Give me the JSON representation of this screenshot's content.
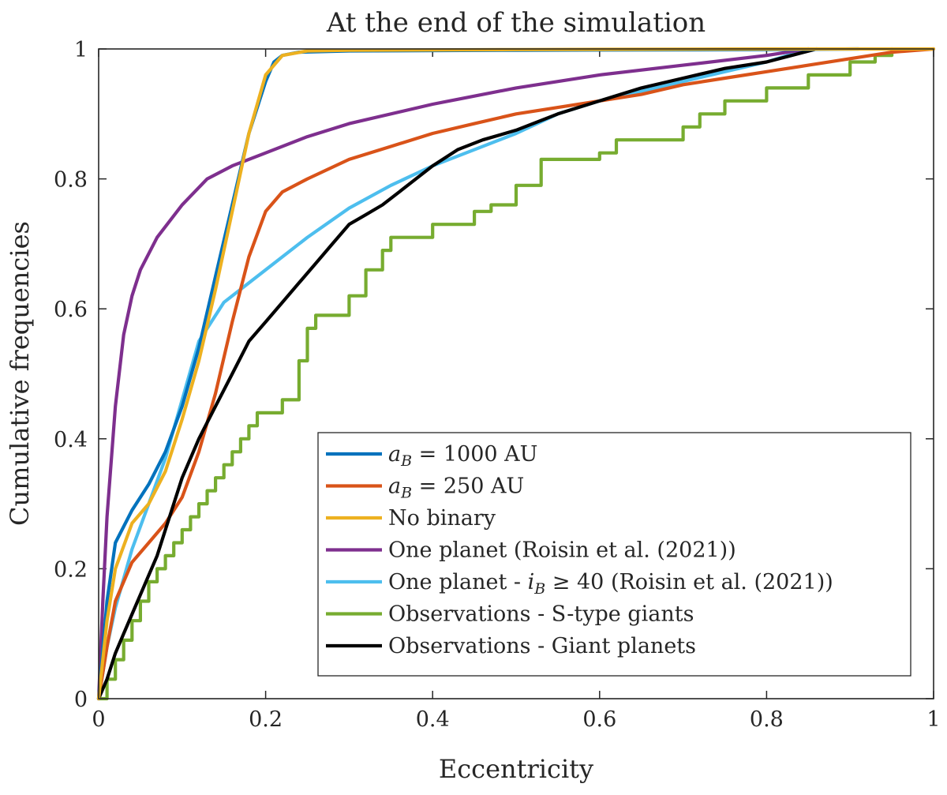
{
  "chart_data": {
    "type": "line",
    "title": "At the end of the simulation",
    "xlabel": "Eccentricity",
    "ylabel": "Cumulative frequencies",
    "xlim": [
      0,
      1
    ],
    "ylim": [
      0,
      1
    ],
    "xticks": [
      0,
      0.2,
      0.4,
      0.6,
      0.8,
      1
    ],
    "xtick_labels": [
      "0",
      "0.2",
      "0.4",
      "0.6",
      "0.8",
      "1"
    ],
    "yticks": [
      0,
      0.2,
      0.4,
      0.6,
      0.8,
      1
    ],
    "ytick_labels": [
      "0",
      "0.2",
      "0.4",
      "0.6",
      "0.8",
      "1"
    ],
    "legend_position": "bottom-right",
    "series": [
      {
        "name": "a_B = 1000 AU",
        "legend_parts": [
          "a",
          "B",
          " = 1000 AU"
        ],
        "color": "#0072BD",
        "step": false,
        "x": [
          0,
          0.01,
          0.02,
          0.04,
          0.06,
          0.08,
          0.1,
          0.12,
          0.14,
          0.16,
          0.18,
          0.2,
          0.21,
          0.22,
          0.24,
          0.3,
          0.5,
          0.8,
          0.91
        ],
        "y": [
          0,
          0.15,
          0.24,
          0.29,
          0.33,
          0.38,
          0.45,
          0.54,
          0.65,
          0.76,
          0.87,
          0.95,
          0.98,
          0.99,
          0.995,
          0.997,
          0.998,
          0.999,
          1.0
        ]
      },
      {
        "name": "a_B = 250 AU",
        "legend_parts": [
          "a",
          "B",
          " = 250 AU"
        ],
        "color": "#D95319",
        "step": false,
        "x": [
          0,
          0.01,
          0.02,
          0.04,
          0.06,
          0.08,
          0.1,
          0.12,
          0.14,
          0.16,
          0.18,
          0.2,
          0.22,
          0.25,
          0.3,
          0.35,
          0.4,
          0.45,
          0.5,
          0.55,
          0.6,
          0.65,
          0.7,
          0.75,
          0.8,
          0.85,
          0.9,
          0.95,
          1.0
        ],
        "y": [
          0,
          0.08,
          0.15,
          0.21,
          0.24,
          0.27,
          0.31,
          0.38,
          0.47,
          0.58,
          0.68,
          0.75,
          0.78,
          0.8,
          0.83,
          0.85,
          0.87,
          0.885,
          0.9,
          0.91,
          0.92,
          0.93,
          0.945,
          0.955,
          0.965,
          0.975,
          0.985,
          0.995,
          1.0
        ]
      },
      {
        "name": "No binary",
        "legend_parts": [
          "No binary",
          "",
          ""
        ],
        "color": "#EDB120",
        "step": false,
        "x": [
          0,
          0.01,
          0.02,
          0.04,
          0.06,
          0.08,
          0.1,
          0.12,
          0.14,
          0.16,
          0.18,
          0.2,
          0.22,
          0.25,
          0.3,
          0.5,
          0.8,
          1.0
        ],
        "y": [
          0,
          0.12,
          0.2,
          0.27,
          0.3,
          0.35,
          0.43,
          0.52,
          0.63,
          0.75,
          0.87,
          0.96,
          0.99,
          0.997,
          0.998,
          0.999,
          1.0,
          1.0
        ]
      },
      {
        "name": "One planet (Roisin et al. (2021))",
        "legend_parts": [
          "One planet (Roisin et al. (2021))",
          "",
          ""
        ],
        "color": "#7E2F8E",
        "step": false,
        "x": [
          0,
          0.005,
          0.01,
          0.02,
          0.03,
          0.04,
          0.05,
          0.07,
          0.1,
          0.13,
          0.16,
          0.2,
          0.25,
          0.3,
          0.4,
          0.5,
          0.6,
          0.7,
          0.8,
          0.85
        ],
        "y": [
          0,
          0.15,
          0.28,
          0.45,
          0.56,
          0.62,
          0.66,
          0.71,
          0.76,
          0.8,
          0.82,
          0.84,
          0.865,
          0.885,
          0.915,
          0.94,
          0.96,
          0.975,
          0.99,
          1.0
        ]
      },
      {
        "name": "One planet - i_B ≥ 40 (Roisin et al. (2021))",
        "legend_parts": [
          "One planet - i",
          "B",
          " ≥ 40 (Roisin et al. (2021))"
        ],
        "color": "#4DBEEE",
        "step": false,
        "x": [
          0,
          0.01,
          0.02,
          0.04,
          0.06,
          0.08,
          0.1,
          0.12,
          0.15,
          0.18,
          0.2,
          0.25,
          0.3,
          0.35,
          0.4,
          0.45,
          0.5,
          0.55,
          0.6,
          0.65,
          0.7,
          0.75,
          0.8,
          0.85
        ],
        "y": [
          0,
          0.08,
          0.14,
          0.23,
          0.3,
          0.37,
          0.46,
          0.55,
          0.61,
          0.64,
          0.66,
          0.71,
          0.755,
          0.79,
          0.82,
          0.845,
          0.87,
          0.9,
          0.92,
          0.935,
          0.95,
          0.965,
          0.98,
          1.0
        ]
      },
      {
        "name": "Observations - S-type giants",
        "legend_parts": [
          "Observations - S-type giants",
          "",
          ""
        ],
        "color": "#77AC30",
        "step": true,
        "x": [
          0,
          0.01,
          0.02,
          0.03,
          0.04,
          0.05,
          0.06,
          0.07,
          0.08,
          0.09,
          0.1,
          0.11,
          0.12,
          0.13,
          0.14,
          0.15,
          0.16,
          0.17,
          0.18,
          0.19,
          0.22,
          0.24,
          0.25,
          0.26,
          0.3,
          0.32,
          0.34,
          0.35,
          0.4,
          0.45,
          0.47,
          0.5,
          0.53,
          0.6,
          0.62,
          0.65,
          0.7,
          0.72,
          0.75,
          0.8,
          0.85,
          0.9,
          0.93,
          0.95
        ],
        "y": [
          0,
          0.03,
          0.06,
          0.09,
          0.12,
          0.15,
          0.18,
          0.2,
          0.22,
          0.24,
          0.26,
          0.28,
          0.3,
          0.32,
          0.34,
          0.36,
          0.38,
          0.4,
          0.42,
          0.44,
          0.46,
          0.52,
          0.57,
          0.59,
          0.62,
          0.66,
          0.69,
          0.71,
          0.73,
          0.75,
          0.76,
          0.79,
          0.83,
          0.84,
          0.86,
          0.86,
          0.88,
          0.9,
          0.92,
          0.94,
          0.96,
          0.98,
          0.99,
          1.0
        ]
      },
      {
        "name": "Observations - Giant planets",
        "legend_parts": [
          "Observations - Giant planets",
          "",
          ""
        ],
        "color": "#000000",
        "step": false,
        "x": [
          0,
          0.01,
          0.02,
          0.03,
          0.04,
          0.05,
          0.06,
          0.07,
          0.08,
          0.1,
          0.12,
          0.14,
          0.16,
          0.18,
          0.2,
          0.22,
          0.24,
          0.26,
          0.28,
          0.3,
          0.32,
          0.34,
          0.36,
          0.38,
          0.4,
          0.43,
          0.46,
          0.5,
          0.55,
          0.6,
          0.65,
          0.7,
          0.75,
          0.8,
          0.83,
          0.86
        ],
        "y": [
          0,
          0.03,
          0.07,
          0.1,
          0.13,
          0.16,
          0.19,
          0.22,
          0.26,
          0.34,
          0.4,
          0.45,
          0.5,
          0.55,
          0.58,
          0.61,
          0.64,
          0.67,
          0.7,
          0.73,
          0.745,
          0.76,
          0.78,
          0.8,
          0.82,
          0.845,
          0.86,
          0.875,
          0.9,
          0.92,
          0.94,
          0.955,
          0.97,
          0.98,
          0.99,
          1.0
        ]
      }
    ]
  }
}
